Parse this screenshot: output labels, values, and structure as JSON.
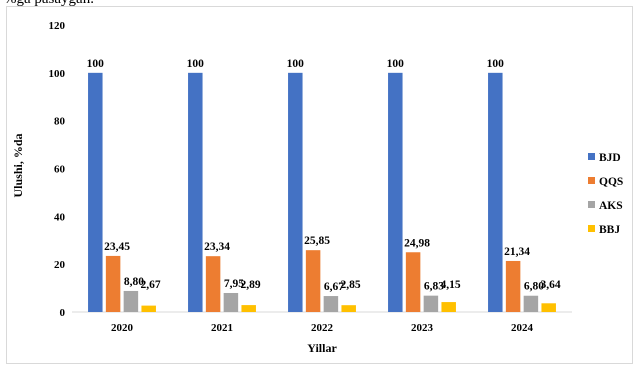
{
  "header_text": "%ga pasaygan.",
  "chart_data": {
    "type": "bar",
    "categories": [
      "2020",
      "2021",
      "2022",
      "2023",
      "2024"
    ],
    "series": [
      {
        "name": "BJD",
        "color": "#4472c4",
        "values": [
          100,
          100,
          100,
          100,
          100
        ],
        "labels": [
          "100",
          "100",
          "100",
          "100",
          "100"
        ]
      },
      {
        "name": "QQS",
        "color": "#ed7d31",
        "values": [
          23.45,
          23.34,
          25.85,
          24.98,
          21.34
        ],
        "labels": [
          "23,45",
          "23,34",
          "25,85",
          "24,98",
          "21,34"
        ]
      },
      {
        "name": "AKS",
        "color": "#a5a5a5",
        "values": [
          8.8,
          7.95,
          6.67,
          6.83,
          6.8
        ],
        "labels": [
          "8,80",
          "7,95",
          "6,67",
          "6,83",
          "6,80"
        ]
      },
      {
        "name": "BBJ",
        "color": "#ffc000",
        "values": [
          2.67,
          2.89,
          2.85,
          4.15,
          3.64
        ],
        "labels": [
          "2,67",
          "2,89",
          "2,85",
          "4,15",
          "3,64"
        ]
      }
    ],
    "yticks": [
      "0",
      "20",
      "40",
      "60",
      "80",
      "100",
      "120"
    ],
    "title": "",
    "xlabel": "Yillar",
    "ylabel": "Ulushi, %da",
    "ylim": [
      0,
      120
    ],
    "grid": false,
    "legend": "right"
  }
}
